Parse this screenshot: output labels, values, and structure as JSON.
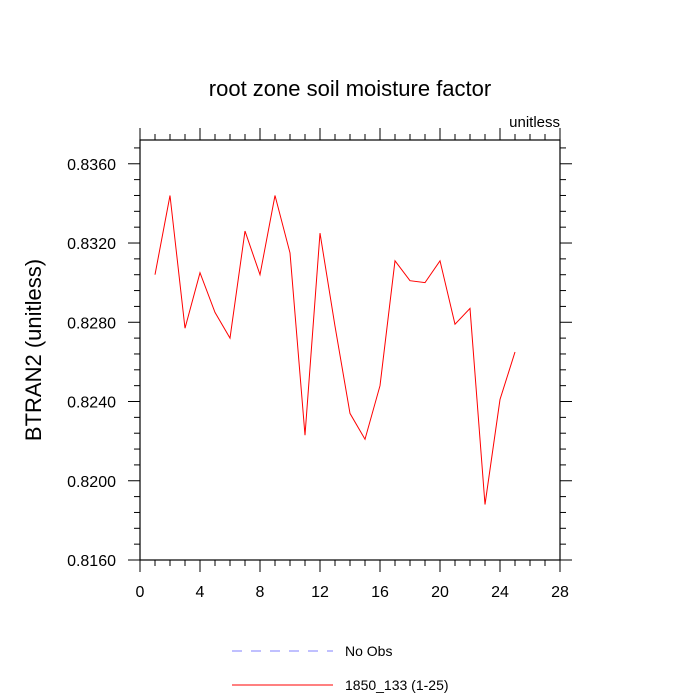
{
  "chart_data": {
    "type": "line",
    "title": "root zone soil moisture factor",
    "units_label": "unitless",
    "xlabel": "",
    "ylabel": "BTRAN2  (unitless)",
    "xlim": [
      0,
      28
    ],
    "ylim": [
      0.816,
      0.8372
    ],
    "x_ticks": [
      0,
      4,
      8,
      12,
      16,
      20,
      24,
      28
    ],
    "x_tick_labels": [
      "0",
      "4",
      "8",
      "12",
      "16",
      "20",
      "24",
      "28"
    ],
    "y_ticks": [
      0.816,
      0.82,
      0.824,
      0.828,
      0.832,
      0.836
    ],
    "y_tick_labels": [
      "0.8160",
      "0.8200",
      "0.8240",
      "0.8280",
      "0.8320",
      "0.8360"
    ],
    "grid": false,
    "series": [
      {
        "name": "1850_133 (1-25)",
        "color": "#ff0000",
        "x": [
          1,
          2,
          3,
          4,
          5,
          6,
          7,
          8,
          9,
          10,
          11,
          12,
          13,
          14,
          15,
          16,
          17,
          18,
          19,
          20,
          21,
          22,
          23,
          24,
          25
        ],
        "y": [
          0.8304,
          0.8344,
          0.8277,
          0.8305,
          0.8285,
          0.8272,
          0.8326,
          0.8304,
          0.8344,
          0.8315,
          0.8223,
          0.8325,
          0.8278,
          0.8234,
          0.8221,
          0.8248,
          0.8311,
          0.8301,
          0.83,
          0.8311,
          0.8279,
          0.8287,
          0.8188,
          0.8241,
          0.8265
        ]
      }
    ],
    "legend": {
      "position": "bottom-center",
      "entries": [
        {
          "label": "No Obs",
          "color": "#8080ff",
          "style": "dashed"
        },
        {
          "label": "1850_133 (1-25)",
          "color": "#ff0000",
          "style": "solid"
        }
      ]
    }
  }
}
